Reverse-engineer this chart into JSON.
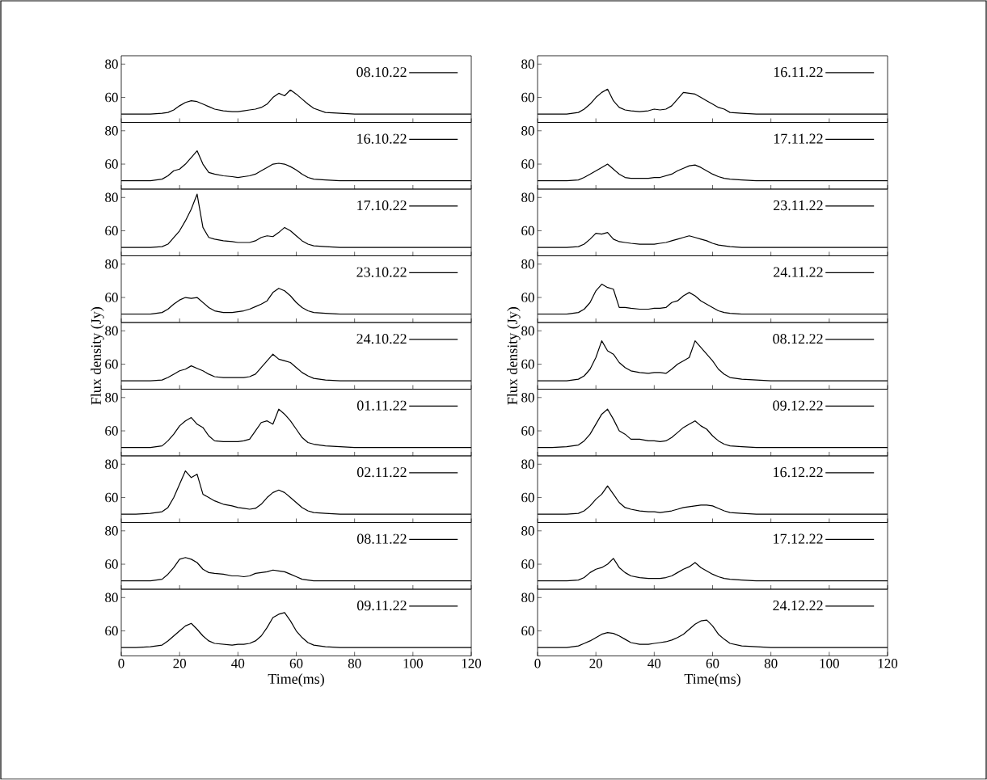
{
  "chart_data": [
    {
      "type": "line",
      "x": [
        0,
        5,
        10,
        14,
        16,
        18,
        20,
        22,
        24,
        26,
        28,
        30,
        32,
        35,
        38,
        40,
        42,
        44,
        46,
        48,
        50,
        52,
        54,
        56,
        58,
        60,
        62,
        64,
        66,
        70,
        75,
        80,
        90,
        100,
        110,
        120
      ],
      "series": [
        {
          "name": "08.10.22",
          "color": "#000000",
          "values": [
            50,
            50,
            50,
            50.5,
            51,
            52.5,
            55,
            57,
            58,
            57.5,
            56,
            54.5,
            53,
            52,
            51.5,
            51.5,
            52,
            52.5,
            53,
            54,
            56,
            60,
            62.5,
            61,
            64.5,
            62,
            59,
            56,
            53.5,
            51,
            50.5,
            50,
            50,
            50,
            50,
            50
          ]
        }
      ],
      "xlim": [
        0,
        120
      ],
      "xticks": [
        0,
        20,
        40,
        60,
        80,
        100,
        120
      ],
      "ylim": [
        45,
        85
      ],
      "yticks": [
        60,
        80
      ],
      "legend": "top right",
      "tick_labels": "y"
    },
    {
      "type": "line",
      "x": [
        0,
        5,
        10,
        14,
        16,
        18,
        20,
        22,
        24,
        26,
        28,
        30,
        32,
        35,
        38,
        40,
        42,
        44,
        46,
        48,
        50,
        52,
        54,
        56,
        58,
        60,
        62,
        64,
        66,
        70,
        75,
        80,
        90,
        100,
        110,
        120
      ],
      "series": [
        {
          "name": "16.10.22",
          "color": "#000000",
          "values": [
            50,
            50,
            50,
            51,
            53,
            56,
            57,
            60,
            64,
            68,
            60,
            55,
            54,
            53,
            52.5,
            52,
            52.5,
            53,
            54,
            56,
            58,
            60,
            60.5,
            60,
            58.5,
            56.5,
            54,
            52,
            51,
            50.5,
            50,
            50,
            50,
            50,
            50,
            50
          ]
        }
      ],
      "xlim": [
        0,
        120
      ],
      "xticks": [
        0,
        20,
        40,
        60,
        80,
        100,
        120
      ],
      "ylim": [
        45,
        85
      ],
      "yticks": [
        60,
        80
      ],
      "legend": "top right",
      "tick_labels": "y"
    },
    {
      "type": "line",
      "x": [
        0,
        5,
        10,
        14,
        16,
        18,
        20,
        22,
        24,
        26,
        28,
        30,
        32,
        35,
        38,
        40,
        42,
        44,
        46,
        48,
        50,
        52,
        54,
        56,
        58,
        60,
        62,
        64,
        66,
        70,
        75,
        80,
        90,
        100,
        110,
        120
      ],
      "series": [
        {
          "name": "17.10.22",
          "color": "#000000",
          "values": [
            50,
            50,
            50,
            50.5,
            52,
            56,
            60,
            66,
            73,
            82,
            62,
            56,
            55,
            54,
            53.5,
            53,
            53,
            53,
            54,
            56,
            57,
            56.5,
            59,
            62,
            60,
            57,
            54,
            52,
            51,
            50.5,
            50,
            50,
            50,
            50,
            50,
            50
          ]
        }
      ],
      "xlim": [
        0,
        120
      ],
      "xticks": [
        0,
        20,
        40,
        60,
        80,
        100,
        120
      ],
      "ylim": [
        45,
        85
      ],
      "yticks": [
        60,
        80
      ],
      "legend": "top right",
      "tick_labels": "y"
    },
    {
      "type": "line",
      "x": [
        0,
        5,
        10,
        14,
        16,
        18,
        20,
        22,
        24,
        26,
        28,
        30,
        32,
        35,
        38,
        40,
        42,
        44,
        46,
        48,
        50,
        52,
        54,
        56,
        58,
        60,
        62,
        64,
        66,
        70,
        75,
        80,
        90,
        100,
        110,
        120
      ],
      "series": [
        {
          "name": "23.10.22",
          "color": "#000000",
          "values": [
            50,
            50,
            50,
            51,
            53,
            56,
            58.5,
            60,
            59.5,
            60,
            57,
            54,
            52,
            51,
            51,
            51.5,
            52,
            53,
            54.5,
            56,
            58,
            63,
            65.5,
            64,
            61,
            57,
            54,
            52,
            51,
            50.5,
            50,
            50,
            50,
            50,
            50,
            50
          ]
        }
      ],
      "xlim": [
        0,
        120
      ],
      "xticks": [
        0,
        20,
        40,
        60,
        80,
        100,
        120
      ],
      "ylim": [
        45,
        85
      ],
      "yticks": [
        60,
        80
      ],
      "legend": "top right",
      "tick_labels": "y"
    },
    {
      "type": "line",
      "x": [
        0,
        5,
        10,
        14,
        16,
        18,
        20,
        22,
        24,
        26,
        28,
        30,
        32,
        35,
        38,
        40,
        42,
        44,
        46,
        48,
        50,
        52,
        54,
        56,
        58,
        60,
        62,
        64,
        66,
        70,
        75,
        80,
        90,
        100,
        110,
        120
      ],
      "series": [
        {
          "name": "24.10.22",
          "color": "#000000",
          "values": [
            50,
            50,
            50,
            50.5,
            52,
            54,
            56,
            57,
            59,
            57.5,
            56,
            54,
            52.5,
            52,
            52,
            52,
            52,
            52.5,
            54,
            58,
            62,
            66,
            63,
            62,
            61,
            58,
            55,
            53,
            51.5,
            50.5,
            50,
            50,
            50,
            50,
            50,
            50
          ]
        }
      ],
      "xlim": [
        0,
        120
      ],
      "xticks": [
        0,
        20,
        40,
        60,
        80,
        100,
        120
      ],
      "ylim": [
        45,
        85
      ],
      "yticks": [
        60,
        80
      ],
      "legend": "top right",
      "tick_labels": "y",
      "ylabel": "Flux density (Jy)"
    },
    {
      "type": "line",
      "x": [
        0,
        5,
        10,
        14,
        16,
        18,
        20,
        22,
        24,
        26,
        28,
        30,
        32,
        35,
        38,
        40,
        42,
        44,
        46,
        48,
        50,
        52,
        54,
        56,
        58,
        60,
        62,
        64,
        66,
        70,
        75,
        80,
        90,
        100,
        110,
        120
      ],
      "series": [
        {
          "name": "01.11.22",
          "color": "#000000",
          "values": [
            50,
            50,
            50,
            51,
            54,
            58,
            63,
            66,
            68,
            64,
            62,
            57,
            54,
            53.5,
            53.5,
            53.5,
            54,
            55,
            60,
            65,
            66,
            64,
            73,
            70,
            66,
            61,
            56,
            53,
            52,
            51,
            50.5,
            50,
            50,
            50,
            50,
            50
          ]
        }
      ],
      "xlim": [
        0,
        120
      ],
      "xticks": [
        0,
        20,
        40,
        60,
        80,
        100,
        120
      ],
      "ylim": [
        45,
        85
      ],
      "yticks": [
        60,
        80
      ],
      "legend": "top right",
      "tick_labels": "y"
    },
    {
      "type": "line",
      "x": [
        0,
        5,
        10,
        14,
        16,
        18,
        20,
        22,
        24,
        26,
        28,
        30,
        32,
        35,
        38,
        40,
        42,
        44,
        46,
        48,
        50,
        52,
        54,
        56,
        58,
        60,
        62,
        64,
        66,
        70,
        75,
        80,
        90,
        100,
        110,
        120
      ],
      "series": [
        {
          "name": "02.11.22",
          "color": "#000000",
          "values": [
            50,
            50,
            50.5,
            51.5,
            54,
            60,
            68,
            76,
            72,
            74,
            62,
            60,
            58,
            56,
            55,
            54,
            53.5,
            53,
            53.5,
            56,
            60,
            63,
            64.5,
            63,
            60,
            57,
            54,
            52,
            51,
            50.5,
            50,
            50,
            50,
            50,
            50,
            50
          ]
        }
      ],
      "xlim": [
        0,
        120
      ],
      "xticks": [
        0,
        20,
        40,
        60,
        80,
        100,
        120
      ],
      "ylim": [
        45,
        85
      ],
      "yticks": [
        60,
        80
      ],
      "legend": "top right",
      "tick_labels": "y"
    },
    {
      "type": "line",
      "x": [
        0,
        5,
        10,
        14,
        16,
        18,
        20,
        22,
        24,
        26,
        28,
        30,
        32,
        35,
        38,
        40,
        42,
        44,
        46,
        48,
        50,
        52,
        54,
        56,
        58,
        60,
        62,
        64,
        66,
        70,
        75,
        80,
        90,
        100,
        110,
        120
      ],
      "series": [
        {
          "name": "08.11.22",
          "color": "#000000",
          "values": [
            50,
            50,
            50,
            51,
            54,
            58,
            63,
            64,
            63,
            61,
            57,
            55,
            54.5,
            54,
            53,
            53,
            52.5,
            53,
            54.5,
            55,
            55.5,
            56.5,
            56,
            55.5,
            54,
            52.5,
            51,
            50.5,
            50,
            50,
            50,
            50,
            50,
            50,
            50,
            50
          ]
        }
      ],
      "xlim": [
        0,
        120
      ],
      "xticks": [
        0,
        20,
        40,
        60,
        80,
        100,
        120
      ],
      "ylim": [
        45,
        85
      ],
      "yticks": [
        60,
        80
      ],
      "legend": "top right",
      "tick_labels": "y"
    },
    {
      "type": "line",
      "x": [
        0,
        5,
        10,
        14,
        16,
        18,
        20,
        22,
        24,
        26,
        28,
        30,
        32,
        35,
        38,
        40,
        42,
        44,
        46,
        48,
        50,
        52,
        54,
        56,
        58,
        60,
        62,
        64,
        66,
        70,
        75,
        80,
        90,
        100,
        110,
        120
      ],
      "series": [
        {
          "name": "09.11.22",
          "color": "#000000",
          "values": [
            50,
            50,
            50.5,
            51.5,
            54,
            57,
            60,
            63,
            64.5,
            61,
            57,
            54,
            52.5,
            52,
            51.5,
            52,
            52,
            52.5,
            54,
            57,
            62,
            68,
            70,
            71,
            66,
            60,
            56,
            53,
            51.5,
            50.5,
            50,
            50,
            50,
            50,
            50,
            50
          ]
        }
      ],
      "xlim": [
        0,
        120
      ],
      "xticks": [
        0,
        20,
        40,
        60,
        80,
        100,
        120
      ],
      "ylim": [
        45,
        85
      ],
      "yticks": [
        60,
        80
      ],
      "legend": "top right",
      "xlabel": "Time(ms)"
    },
    {
      "type": "line",
      "x": [
        0,
        5,
        10,
        14,
        16,
        18,
        20,
        22,
        24,
        26,
        28,
        30,
        32,
        35,
        38,
        40,
        42,
        44,
        46,
        48,
        50,
        52,
        54,
        56,
        58,
        60,
        62,
        64,
        66,
        70,
        75,
        80,
        90,
        100,
        110,
        120
      ],
      "series": [
        {
          "name": "16.11.22",
          "color": "#000000",
          "values": [
            50,
            50,
            50,
            51,
            53,
            56,
            60,
            63,
            65,
            58,
            54,
            52.5,
            52,
            51.5,
            52,
            53,
            52.5,
            53,
            55,
            59,
            63,
            62.5,
            62,
            60,
            58,
            56,
            54,
            53,
            51,
            50.5,
            50,
            50,
            50,
            50,
            50,
            50
          ]
        }
      ],
      "xlim": [
        0,
        120
      ],
      "xticks": [
        0,
        20,
        40,
        60,
        80,
        100,
        120
      ],
      "ylim": [
        45,
        85
      ],
      "yticks": [
        60,
        80
      ],
      "legend": "top right",
      "tick_labels": "y"
    },
    {
      "type": "line",
      "x": [
        0,
        5,
        10,
        14,
        16,
        18,
        20,
        22,
        24,
        26,
        28,
        30,
        32,
        35,
        38,
        40,
        42,
        44,
        46,
        48,
        50,
        52,
        54,
        56,
        58,
        60,
        62,
        64,
        66,
        70,
        75,
        80,
        90,
        100,
        110,
        120
      ],
      "series": [
        {
          "name": "17.11.22",
          "color": "#000000",
          "values": [
            50,
            50,
            50,
            50.5,
            52,
            54,
            56,
            58,
            60,
            57,
            54,
            52,
            51.5,
            51.5,
            51.5,
            52,
            52,
            53,
            54,
            56,
            57.5,
            59,
            59.5,
            58,
            56,
            54,
            52.5,
            51.5,
            51,
            50.5,
            50,
            50,
            50,
            50,
            50,
            50
          ]
        }
      ],
      "xlim": [
        0,
        120
      ],
      "xticks": [
        0,
        20,
        40,
        60,
        80,
        100,
        120
      ],
      "ylim": [
        45,
        85
      ],
      "yticks": [
        60,
        80
      ],
      "legend": "top right",
      "tick_labels": "y"
    },
    {
      "type": "line",
      "x": [
        0,
        5,
        10,
        14,
        16,
        18,
        20,
        22,
        24,
        26,
        28,
        30,
        32,
        35,
        38,
        40,
        42,
        44,
        46,
        48,
        50,
        52,
        54,
        56,
        58,
        60,
        62,
        64,
        66,
        70,
        75,
        80,
        90,
        100,
        110,
        120
      ],
      "series": [
        {
          "name": "23.11.22",
          "color": "#000000",
          "values": [
            50,
            50,
            50,
            50.5,
            52,
            55,
            58.5,
            58,
            59,
            55,
            53.5,
            53,
            52.5,
            52,
            52,
            52,
            52.5,
            53,
            54,
            55,
            56,
            57,
            56,
            55,
            54,
            52.5,
            51.5,
            51,
            50.5,
            50,
            50,
            50,
            50,
            50,
            50,
            50
          ]
        }
      ],
      "xlim": [
        0,
        120
      ],
      "xticks": [
        0,
        20,
        40,
        60,
        80,
        100,
        120
      ],
      "ylim": [
        45,
        85
      ],
      "yticks": [
        60,
        80
      ],
      "legend": "top right",
      "tick_labels": "y"
    },
    {
      "type": "line",
      "x": [
        0,
        5,
        10,
        14,
        16,
        18,
        20,
        22,
        24,
        26,
        28,
        30,
        32,
        35,
        38,
        40,
        42,
        44,
        46,
        48,
        50,
        52,
        54,
        56,
        58,
        60,
        62,
        64,
        66,
        70,
        75,
        80,
        90,
        100,
        110,
        120
      ],
      "series": [
        {
          "name": "24.11.22",
          "color": "#000000",
          "values": [
            50,
            50,
            50,
            51,
            53,
            57,
            64,
            68,
            66,
            65,
            54,
            54,
            53.5,
            53,
            53,
            53.5,
            53.5,
            54,
            57,
            58,
            61,
            63,
            61,
            58,
            56,
            54,
            52,
            51,
            50.5,
            50,
            50,
            50,
            50,
            50,
            50,
            50
          ]
        }
      ],
      "xlim": [
        0,
        120
      ],
      "xticks": [
        0,
        20,
        40,
        60,
        80,
        100,
        120
      ],
      "ylim": [
        45,
        85
      ],
      "yticks": [
        60,
        80
      ],
      "legend": "top right",
      "tick_labels": "y"
    },
    {
      "type": "line",
      "x": [
        0,
        5,
        10,
        14,
        16,
        18,
        20,
        22,
        24,
        26,
        28,
        30,
        32,
        35,
        38,
        40,
        42,
        44,
        46,
        48,
        50,
        52,
        54,
        56,
        58,
        60,
        62,
        64,
        66,
        70,
        75,
        80,
        90,
        100,
        110,
        120
      ],
      "series": [
        {
          "name": "08.12.22",
          "color": "#000000",
          "values": [
            50,
            50,
            50,
            51,
            53,
            57,
            64,
            74,
            68,
            66,
            61,
            58,
            56,
            55,
            54.5,
            55,
            55,
            54.5,
            57,
            60,
            62,
            64,
            74,
            70,
            66,
            62,
            57,
            54,
            52,
            51,
            50.5,
            50,
            50,
            50,
            50,
            50
          ]
        }
      ],
      "xlim": [
        0,
        120
      ],
      "xticks": [
        0,
        20,
        40,
        60,
        80,
        100,
        120
      ],
      "ylim": [
        45,
        85
      ],
      "yticks": [
        60,
        80
      ],
      "legend": "top right",
      "tick_labels": "y",
      "ylabel": "Flux density (Jy)"
    },
    {
      "type": "line",
      "x": [
        0,
        5,
        10,
        14,
        16,
        18,
        20,
        22,
        24,
        26,
        28,
        30,
        32,
        35,
        38,
        40,
        42,
        44,
        46,
        48,
        50,
        52,
        54,
        56,
        58,
        60,
        62,
        64,
        66,
        70,
        75,
        80,
        90,
        100,
        110,
        120
      ],
      "series": [
        {
          "name": "09.12.22",
          "color": "#000000",
          "values": [
            50,
            50,
            50.5,
            51.5,
            54,
            58,
            64,
            70,
            73,
            67,
            60,
            58,
            55,
            55,
            54,
            54,
            53.5,
            54,
            56,
            59,
            62,
            64,
            66,
            63,
            61,
            57,
            54,
            52,
            51,
            50.5,
            50,
            50,
            50,
            50,
            50,
            50
          ]
        }
      ],
      "xlim": [
        0,
        120
      ],
      "xticks": [
        0,
        20,
        40,
        60,
        80,
        100,
        120
      ],
      "ylim": [
        45,
        85
      ],
      "yticks": [
        60,
        80
      ],
      "legend": "top right",
      "tick_labels": "y"
    },
    {
      "type": "line",
      "x": [
        0,
        5,
        10,
        14,
        16,
        18,
        20,
        22,
        24,
        26,
        28,
        30,
        32,
        35,
        38,
        40,
        42,
        44,
        46,
        48,
        50,
        52,
        54,
        56,
        58,
        60,
        62,
        64,
        66,
        70,
        75,
        80,
        90,
        100,
        110,
        120
      ],
      "series": [
        {
          "name": "16.12.22",
          "color": "#000000",
          "values": [
            50,
            50,
            50,
            50.5,
            52,
            55,
            59,
            62,
            67,
            62,
            57,
            54,
            53,
            52,
            51.5,
            51.5,
            51,
            51.5,
            52,
            53,
            54,
            54.5,
            55,
            55.5,
            55.5,
            55,
            53.5,
            52,
            51,
            50.5,
            50,
            50,
            50,
            50,
            50,
            50
          ]
        }
      ],
      "xlim": [
        0,
        120
      ],
      "xticks": [
        0,
        20,
        40,
        60,
        80,
        100,
        120
      ],
      "ylim": [
        45,
        85
      ],
      "yticks": [
        60,
        80
      ],
      "legend": "top right",
      "tick_labels": "y"
    },
    {
      "type": "line",
      "x": [
        0,
        5,
        10,
        14,
        16,
        18,
        20,
        22,
        24,
        26,
        28,
        30,
        32,
        35,
        38,
        40,
        42,
        44,
        46,
        48,
        50,
        52,
        54,
        56,
        58,
        60,
        62,
        64,
        66,
        70,
        75,
        80,
        90,
        100,
        110,
        120
      ],
      "series": [
        {
          "name": "17.12.22",
          "color": "#000000",
          "values": [
            50,
            50,
            50,
            50.5,
            52,
            55,
            57,
            58,
            60,
            63.5,
            58,
            55,
            53,
            52,
            51.5,
            51.5,
            51.5,
            52,
            53,
            55,
            57,
            58.5,
            61,
            58,
            56,
            54,
            52.5,
            51.5,
            51,
            50.5,
            50,
            50,
            50,
            50,
            50,
            50
          ]
        }
      ],
      "xlim": [
        0,
        120
      ],
      "xticks": [
        0,
        20,
        40,
        60,
        80,
        100,
        120
      ],
      "ylim": [
        45,
        85
      ],
      "yticks": [
        60,
        80
      ],
      "legend": "top right",
      "tick_labels": "y"
    },
    {
      "type": "line",
      "x": [
        0,
        5,
        10,
        14,
        16,
        18,
        20,
        22,
        24,
        26,
        28,
        30,
        32,
        35,
        38,
        40,
        42,
        44,
        46,
        48,
        50,
        52,
        54,
        56,
        58,
        60,
        62,
        64,
        66,
        70,
        75,
        80,
        90,
        100,
        110,
        120
      ],
      "series": [
        {
          "name": "24.12.22",
          "color": "#000000",
          "values": [
            50,
            50,
            50,
            51,
            52.5,
            54,
            56,
            58,
            59,
            58.5,
            57,
            55,
            53,
            52,
            52,
            52.5,
            53,
            53.5,
            54.5,
            56,
            58,
            61,
            64,
            66,
            66.5,
            63,
            58,
            55,
            52.5,
            51,
            50.5,
            50,
            50,
            50,
            50,
            50
          ]
        }
      ],
      "xlim": [
        0,
        120
      ],
      "xticks": [
        0,
        20,
        40,
        60,
        80,
        100,
        120
      ],
      "ylim": [
        45,
        85
      ],
      "yticks": [
        60,
        80
      ],
      "legend": "top right",
      "xlabel": "Time(ms)"
    }
  ]
}
